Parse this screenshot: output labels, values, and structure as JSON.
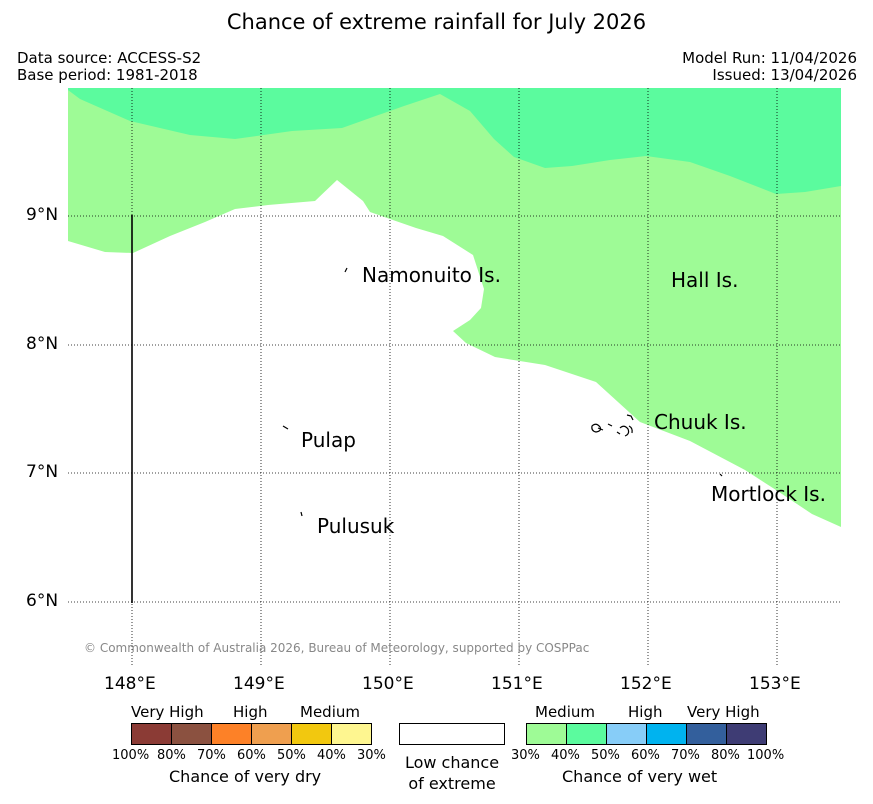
{
  "header": {
    "title": "Chance of extreme rainfall for July 2026",
    "data_source": "Data source: ACCESS-S2",
    "base_period": "Base period: 1981-2018",
    "model_run": "Model Run: 11/04/2026",
    "issued": "Issued: 13/04/2026"
  },
  "map": {
    "latitude_labels": [
      "9°N",
      "8°N",
      "7°N",
      "6°N"
    ],
    "longitude_labels": [
      "148°E",
      "149°E",
      "150°E",
      "151°E",
      "152°E",
      "153°E"
    ],
    "places": {
      "namonuito": "Namonuito Is.",
      "hall": "Hall Is.",
      "chuuk": "Chuuk Is.",
      "mortlock": "Mortlock Is.",
      "pulap": "Pulap",
      "pulusuk": "Pulusuk"
    },
    "copyright": "© Commonwealth of Australia 2026, Bureau of Meteorology, supported by COSPPac",
    "region_colors": {
      "medium_wet": "#9efb96",
      "wet_40_50": "#5bfb9e",
      "low": "#ffffff"
    }
  },
  "legend": {
    "dry": {
      "headings": [
        "Very High",
        "High",
        "Medium"
      ],
      "ticks": [
        "100%",
        "80%",
        "70%",
        "60%",
        "50%",
        "40%",
        "30%"
      ],
      "colors": [
        "#8b3b35",
        "#8b5140",
        "#fd8127",
        "#ef9f4f",
        "#f2c80f",
        "#fef690"
      ],
      "caption": "Chance of very dry"
    },
    "low": {
      "line1": "Low chance",
      "line2": "of extreme"
    },
    "wet": {
      "headings": [
        "Medium",
        "High",
        "Very High"
      ],
      "ticks": [
        "30%",
        "40%",
        "50%",
        "60%",
        "70%",
        "80%",
        "100%"
      ],
      "colors": [
        "#9efb96",
        "#5bfb9e",
        "#87cdf8",
        "#00b3ef",
        "#335f9c",
        "#3e3c74"
      ],
      "caption": "Chance of very wet"
    }
  }
}
